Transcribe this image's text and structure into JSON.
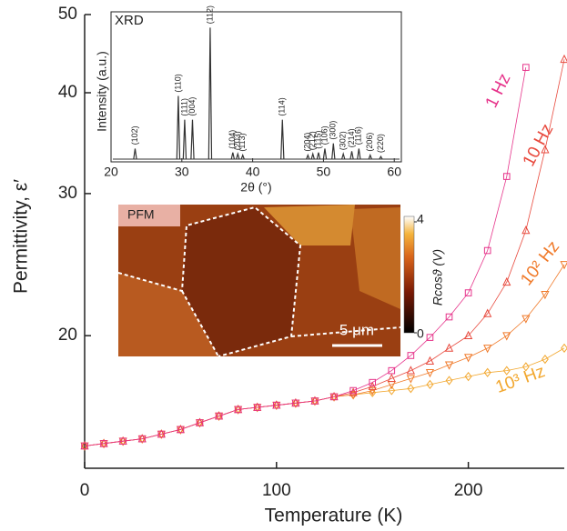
{
  "chart_data": [
    {
      "type": "line",
      "x_label": "Temperature (K)",
      "y_label": "Permittivity, ε′",
      "x": [
        0,
        10,
        20,
        30,
        40,
        50,
        60,
        70,
        80,
        90,
        100,
        110,
        120,
        130,
        140,
        150,
        160,
        170,
        180,
        190,
        200,
        210,
        220,
        230,
        240,
        250
      ],
      "xlim": [
        0,
        250
      ],
      "xticks": [
        0,
        100,
        200
      ],
      "ylim": [
        13.7,
        50
      ],
      "yticks": [
        20,
        30,
        40,
        50
      ],
      "log_y": true,
      "series": [
        {
          "name": "1 Hz",
          "color": "#e6338a",
          "marker": "square",
          "values": [
            14.6,
            14.7,
            14.8,
            14.9,
            15.1,
            15.3,
            15.6,
            15.9,
            16.2,
            16.3,
            16.4,
            16.5,
            16.6,
            16.8,
            17.1,
            17.5,
            18.1,
            18.9,
            19.9,
            21.1,
            22.6,
            25.5,
            31.5,
            43,
            null,
            null
          ]
        },
        {
          "name": "10 Hz",
          "color": "#e84a3e",
          "marker": "triangle-up",
          "values": [
            14.6,
            14.7,
            14.8,
            14.9,
            15.1,
            15.3,
            15.6,
            15.9,
            16.2,
            16.3,
            16.4,
            16.5,
            16.6,
            16.8,
            17.0,
            17.3,
            17.7,
            18.1,
            18.6,
            19.3,
            20.0,
            21.3,
            23.3,
            27,
            34,
            44
          ]
        },
        {
          "name": "10² Hz",
          "color": "#f07a2a",
          "marker": "triangle-down",
          "values": [
            14.6,
            14.7,
            14.8,
            14.9,
            15.1,
            15.3,
            15.6,
            15.9,
            16.2,
            16.3,
            16.4,
            16.5,
            16.6,
            16.8,
            16.9,
            17.1,
            17.4,
            17.7,
            18.0,
            18.4,
            18.8,
            19.3,
            20.0,
            21.0,
            22.5,
            24.5
          ]
        },
        {
          "name": "10³ Hz",
          "color": "#f2a72e",
          "marker": "diamond",
          "values": [
            14.6,
            14.7,
            14.8,
            14.9,
            15.1,
            15.3,
            15.6,
            15.9,
            16.2,
            16.3,
            16.4,
            16.5,
            16.6,
            16.8,
            16.9,
            17.0,
            17.1,
            17.2,
            17.4,
            17.6,
            17.8,
            18.0,
            18.1,
            18.3,
            18.7,
            19.3
          ]
        }
      ]
    },
    {
      "type": "spectrum",
      "title": "XRD",
      "x_label": "2θ (°)",
      "y_label": "Intensity (a.u.)",
      "color": "#333333",
      "xlim": [
        20,
        61
      ],
      "xticks": [
        20,
        30,
        40,
        50,
        60
      ],
      "ylim": [
        0,
        112
      ],
      "categories": [
        "(102)",
        "(110)",
        "(111)",
        "(004)",
        "(112)",
        "(104)",
        "(203)",
        "(113)",
        "(114)",
        "(204)",
        "(212)",
        "(115)",
        "(106)",
        "(300)",
        "(302)",
        "(214)",
        "(116)",
        "(206)",
        "(220)"
      ],
      "x": [
        23.4,
        29.5,
        30.4,
        31.5,
        34.0,
        37.2,
        37.9,
        38.6,
        44.2,
        47.8,
        48.5,
        49.3,
        50.2,
        51.4,
        52.8,
        54.0,
        55.0,
        56.6,
        58.1
      ],
      "values": [
        8,
        48,
        30,
        30,
        100,
        5,
        4,
        3,
        30,
        3,
        4,
        5,
        8,
        12,
        4,
        6,
        8,
        3,
        2
      ]
    }
  ],
  "image": {
    "label": "PFM",
    "scale_bar": "5 μm",
    "colorbar": {
      "label": "Rcosϑ (V)",
      "ticks": [
        0,
        4
      ]
    }
  }
}
